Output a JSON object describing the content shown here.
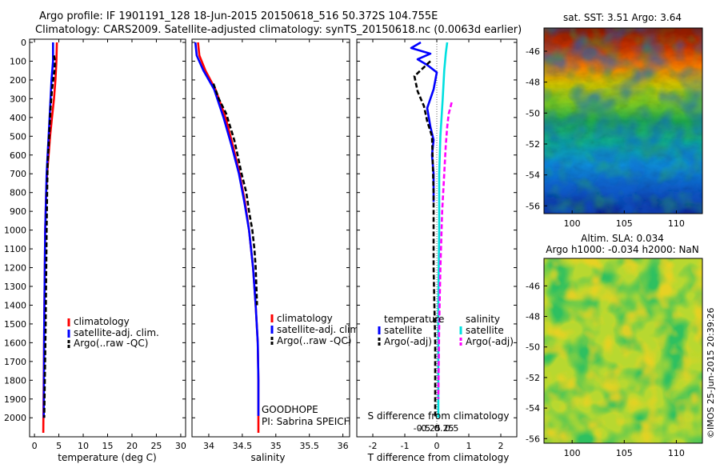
{
  "title": {
    "line1": "Argo profile: IF 1901191_128 18-Jun-2015 20150618_516 50.372S 104.755E",
    "line2": "Climatology: CARS2009. Satellite-adjusted climatology: synTS_20150618.nc (0.0063d earlier)"
  },
  "colors": {
    "climatology": "#ff0000",
    "satellite_adj": "#0000ff",
    "argo": "#000000",
    "satellite_cyan": "#00e0e0",
    "argo_adj_magenta": "#ff00ff"
  },
  "chart_data": [
    {
      "type": "line",
      "panel": "temperature",
      "xlabel": "temperature (deg C)",
      "ylabel": "",
      "xlim": [
        -1,
        31
      ],
      "ylim": [
        2080,
        0
      ],
      "y_reversed": true,
      "xticks": [
        0,
        5,
        10,
        15,
        20,
        25,
        30
      ],
      "xtick_labels": [
        "0",
        "5",
        "10",
        "15",
        "20",
        "25",
        "30"
      ],
      "yticks": [
        0,
        100,
        200,
        300,
        400,
        500,
        600,
        700,
        800,
        900,
        1000,
        1100,
        1200,
        1300,
        1400,
        1500,
        1600,
        1700,
        1800,
        1900,
        2000
      ],
      "ytick_labels": [
        "0",
        "100",
        "200",
        "300",
        "400",
        "500",
        "600",
        "700",
        "800",
        "900",
        "1000",
        "1100",
        "1200",
        "1300",
        "1400",
        "1500",
        "1600",
        "1700",
        "1800",
        "1900",
        "2000"
      ],
      "legend": [
        "climatology",
        "satellite-adj. clim.",
        "Argo(..raw -QC)"
      ],
      "legend_position": "lower-center",
      "series": [
        {
          "name": "climatology",
          "color": "#ff0000",
          "dash": "",
          "x": [
            4.6,
            4.5,
            4.3,
            4.0,
            3.6,
            3.2,
            2.9,
            2.6,
            2.4,
            2.2,
            2.0,
            1.8
          ],
          "y": [
            0,
            100,
            200,
            300,
            400,
            500,
            600,
            700,
            800,
            1000,
            1500,
            2080
          ]
        },
        {
          "name": "satellite-adj. clim.",
          "color": "#0000ff",
          "dash": "",
          "x": [
            3.8,
            3.8,
            3.5,
            3.3,
            3.1,
            2.9,
            2.7,
            2.5,
            2.4,
            2.2,
            2.0,
            1.9
          ],
          "y": [
            0,
            100,
            200,
            300,
            400,
            500,
            600,
            700,
            800,
            1000,
            1500,
            2000
          ]
        },
        {
          "name": "Argo(..raw -QC)",
          "color": "#000000",
          "dash": "6,3",
          "x": [
            4.0,
            4.2,
            4.1,
            3.6,
            3.3,
            3.1,
            2.9,
            2.7,
            2.6,
            2.5,
            2.3,
            2.0
          ],
          "y": [
            70,
            100,
            150,
            250,
            350,
            450,
            550,
            650,
            800,
            1000,
            1500,
            2000
          ]
        }
      ]
    },
    {
      "type": "line",
      "panel": "salinity",
      "xlabel": "salinity",
      "xlim": [
        33.75,
        36.1
      ],
      "ylim": [
        2080,
        0
      ],
      "y_reversed": true,
      "xticks": [
        34,
        34.5,
        35,
        35.5,
        36
      ],
      "xtick_labels": [
        "34",
        "34.5",
        "35",
        "35.5",
        "36"
      ],
      "legend": [
        "climatology",
        "satellite-adj. clim.",
        "Argo(..raw -QC)"
      ],
      "legend_position": "lower-right",
      "annotations": [
        "GOODHOPE",
        "PI: Sabrina SPEICH"
      ],
      "series": [
        {
          "name": "climatology",
          "color": "#ff0000",
          "dash": "",
          "x": [
            33.84,
            33.86,
            33.95,
            34.1,
            34.25,
            34.36,
            34.46,
            34.54,
            34.6,
            34.66,
            34.7,
            34.73,
            34.74,
            34.74,
            34.74
          ],
          "y": [
            0,
            70,
            150,
            250,
            400,
            550,
            700,
            850,
            1000,
            1200,
            1400,
            1600,
            1800,
            2000,
            2080
          ]
        },
        {
          "name": "satellite-adj. clim.",
          "color": "#0000ff",
          "dash": "",
          "x": [
            33.8,
            33.82,
            33.92,
            34.08,
            34.22,
            34.34,
            34.45,
            34.53,
            34.6,
            34.66,
            34.7,
            34.73,
            34.74,
            34.74
          ],
          "y": [
            0,
            70,
            150,
            250,
            400,
            550,
            700,
            850,
            1000,
            1200,
            1400,
            1600,
            1800,
            1990
          ]
        },
        {
          "name": "Argo(..raw -QC)",
          "color": "#000000",
          "dash": "6,3",
          "x": [
            34.07,
            34.15,
            34.26,
            34.32,
            34.38,
            34.43,
            34.49,
            34.56,
            34.6,
            34.65,
            34.68,
            34.7,
            34.71,
            34.72
          ],
          "y": [
            220,
            300,
            380,
            450,
            520,
            600,
            700,
            800,
            900,
            1000,
            1100,
            1200,
            1300,
            1400
          ]
        }
      ]
    },
    {
      "type": "line",
      "panel": "difference",
      "xlabel": "T difference from climatology",
      "xlabel_top": "S difference from climatology",
      "xlim": [
        -2.5,
        2.5
      ],
      "ylim": [
        2080,
        0
      ],
      "y_reversed": true,
      "xticks": [
        -2,
        -1,
        0,
        1,
        2
      ],
      "xtick_labels": [
        "-2",
        "-1",
        "0",
        "1",
        "2"
      ],
      "xticks_s": [
        -0.5,
        -0.25,
        0,
        0.25,
        0.5
      ],
      "xtick_labels_s": [
        "-0.5",
        "-0.25",
        "0",
        "0.25",
        "0.5"
      ],
      "legend_groups": [
        "temperature",
        "salinity"
      ],
      "legend": [
        "satellite",
        "Argo(-adj)",
        "satellite",
        "Argo(-adj)"
      ],
      "legend_position": "lower-center",
      "series": [
        {
          "name": "satellite",
          "group": "temperature",
          "color": "#0000ff",
          "dash": "",
          "x": [
            -0.5,
            -0.8,
            -0.2,
            -0.6,
            -0.3,
            0.0,
            -0.1,
            -0.3,
            -0.2,
            -0.1,
            -0.15,
            -0.1,
            -0.1,
            -0.1
          ],
          "y": [
            0,
            30,
            60,
            90,
            120,
            160,
            250,
            350,
            450,
            520,
            600,
            700,
            800,
            850
          ]
        },
        {
          "name": "Argo(-adj)",
          "group": "temperature",
          "color": "#000000",
          "dash": "6,3",
          "x": [
            -0.2,
            -0.7,
            -0.6,
            -0.4,
            -0.3,
            -0.15,
            -0.1,
            -0.1,
            -0.05,
            -0.05
          ],
          "y": [
            100,
            180,
            260,
            340,
            420,
            500,
            800,
            1200,
            1600,
            2000
          ]
        },
        {
          "name": "satellite",
          "group": "salinity",
          "color": "#00e0e0",
          "dash": "",
          "x": [
            0.35,
            0.3,
            0.25,
            0.2,
            0.12,
            0.08,
            0.08,
            0.05,
            0.05,
            0.05
          ],
          "y": [
            0,
            60,
            150,
            300,
            500,
            700,
            1000,
            1400,
            1800,
            2000
          ]
        },
        {
          "name": "Argo(-adj)",
          "group": "salinity",
          "color": "#ff00ff",
          "dash": "6,3",
          "x": [
            0.5,
            0.4,
            0.35,
            0.3,
            0.25,
            0.18,
            0.12,
            0.08,
            0.05
          ],
          "y": [
            320,
            380,
            450,
            550,
            700,
            900,
            1200,
            1500,
            1900
          ]
        }
      ]
    },
    {
      "type": "heatmap",
      "panel": "sst-map",
      "title": "sat. SST: 3.51  Argo: 3.64",
      "xticks": [
        100,
        105,
        110
      ],
      "xtick_labels": [
        "100",
        "105",
        "110"
      ],
      "xlim": [
        97.3,
        112.5
      ],
      "yticks": [
        -46,
        -48,
        -50,
        -52,
        -54,
        -56
      ],
      "ytick_labels": [
        "-46",
        "-48",
        "-50",
        "-52",
        "-54",
        "-56"
      ],
      "ylim": [
        -56.5,
        -44.5
      ]
    },
    {
      "type": "heatmap",
      "panel": "sla-map",
      "title": "Altim. SLA: 0.034",
      "subtitle": "Argo h1000: -0.034 h2000: NaN",
      "xticks": [
        100,
        105,
        110
      ],
      "xtick_labels": [
        "100",
        "105",
        "110"
      ],
      "xlim": [
        97.3,
        112.5
      ],
      "yticks": [
        -46,
        -48,
        -50,
        -52,
        -54,
        -56
      ],
      "ytick_labels": [
        "-46",
        "-48",
        "-50",
        "-52",
        "-54",
        "-56"
      ],
      "ylim": [
        -56.3,
        -44.2
      ]
    }
  ],
  "footer_stamp": "©IMOS 25-Jun-2015 20:39:26"
}
